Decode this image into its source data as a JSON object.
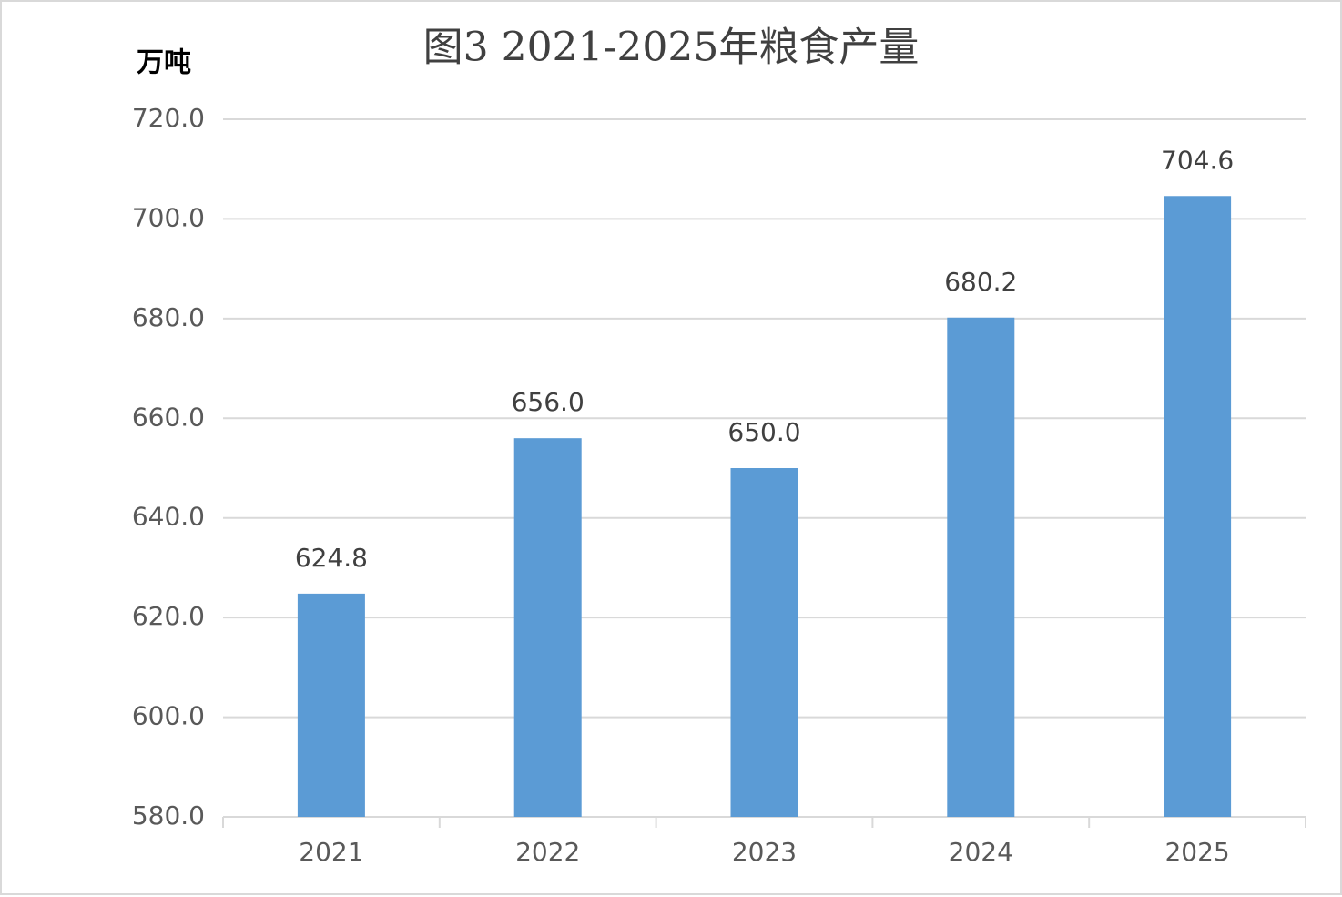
{
  "chart_data": {
    "type": "bar",
    "title": "图3  2021-2025年粮食产量",
    "y_label": "万吨",
    "categories": [
      "2021",
      "2022",
      "2023",
      "2024",
      "2025"
    ],
    "values": [
      624.8,
      656.0,
      650.0,
      680.2,
      704.6
    ],
    "value_labels": [
      "624.8",
      "656.0",
      "650.0",
      "680.2",
      "704.6"
    ],
    "color": "#5b9bd5",
    "ylim": [
      580,
      720
    ],
    "yticks": [
      {
        "value": 580,
        "label": "580.0"
      },
      {
        "value": 600,
        "label": "600.0"
      },
      {
        "value": 620,
        "label": "620.0"
      },
      {
        "value": 640,
        "label": "640.0"
      },
      {
        "value": 660,
        "label": "660.0"
      },
      {
        "value": 680,
        "label": "680.0"
      },
      {
        "value": 700,
        "label": "700.0"
      },
      {
        "value": 720,
        "label": "720.0"
      }
    ],
    "grid": true
  }
}
